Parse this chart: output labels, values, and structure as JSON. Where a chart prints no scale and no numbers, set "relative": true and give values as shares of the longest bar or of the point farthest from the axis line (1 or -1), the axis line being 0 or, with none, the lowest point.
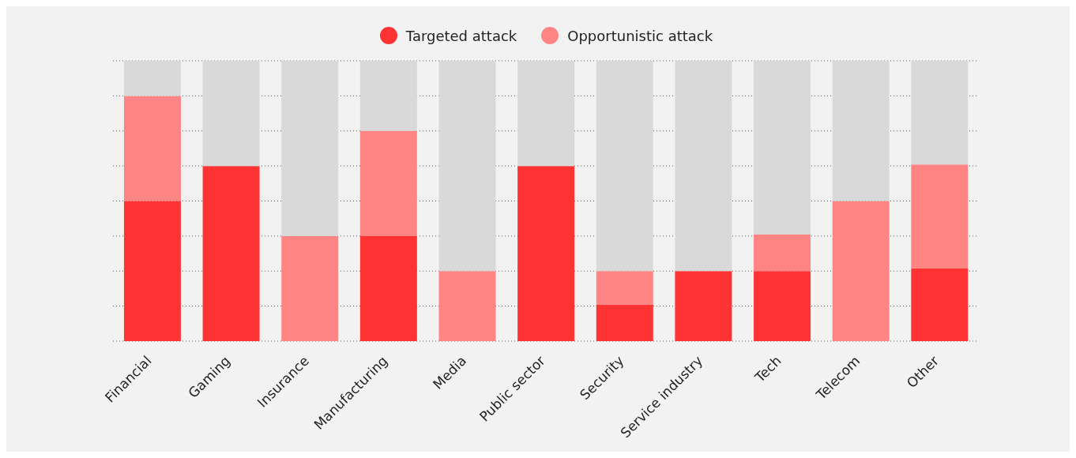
{
  "chart_data": {
    "type": "bar",
    "stacked": true,
    "relative": true,
    "grid": "y",
    "legend": "top",
    "categories": [
      "Financial",
      "Gaming",
      "Insurance",
      "Manufacturing",
      "Media",
      "Public sector",
      "Security",
      "Service industry",
      "Tech",
      "Telecom",
      "Other"
    ],
    "series": [
      {
        "name": "Targeted attack",
        "color": "#ff3333",
        "values": [
          0.5,
          0.625,
          0,
          0.375,
          0,
          0.625,
          0.13,
          0.25,
          0.25,
          0,
          0.26
        ]
      },
      {
        "name": "Opportunistic attack",
        "color": "#ff8585",
        "values": [
          0.375,
          0,
          0.375,
          0.375,
          0.25,
          0,
          0.12,
          0,
          0.13,
          0.5,
          0.37
        ]
      },
      {
        "color": "#d9d9d9",
        "values": [
          0.125,
          0.375,
          0.625,
          0.25,
          0.75,
          0.375,
          0.75,
          0.75,
          0.62,
          0.5,
          0.37
        ]
      }
    ]
  }
}
